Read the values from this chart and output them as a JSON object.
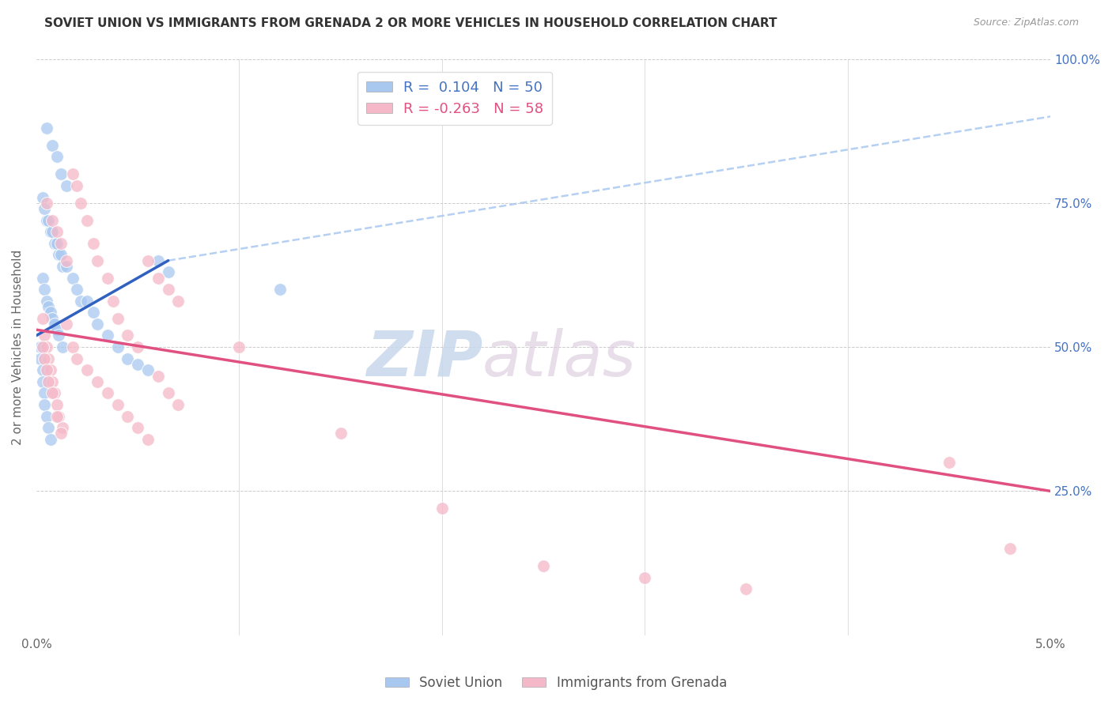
{
  "title": "SOVIET UNION VS IMMIGRANTS FROM GRENADA 2 OR MORE VEHICLES IN HOUSEHOLD CORRELATION CHART",
  "source": "Source: ZipAtlas.com",
  "ylabel": "2 or more Vehicles in Household",
  "xlim": [
    0.0,
    5.0
  ],
  "ylim": [
    0.0,
    100.0
  ],
  "legend_labels": [
    "Soviet Union",
    "Immigrants from Grenada"
  ],
  "R_blue": 0.104,
  "N_blue": 50,
  "R_pink": -0.263,
  "N_pink": 58,
  "blue_color": "#A8C8F0",
  "pink_color": "#F5B8C8",
  "blue_line_color": "#3060C0",
  "pink_line_color": "#E05080",
  "blue_dash_color": "#A8C8F0",
  "background_color": "#FFFFFF",
  "watermark_zip": "ZIP",
  "watermark_atlas": "atlas",
  "blue_scatter_x": [
    0.05,
    0.08,
    0.1,
    0.12,
    0.15,
    0.05,
    0.07,
    0.09,
    0.11,
    0.13,
    0.03,
    0.04,
    0.06,
    0.08,
    0.1,
    0.12,
    0.15,
    0.18,
    0.2,
    0.22,
    0.03,
    0.04,
    0.05,
    0.06,
    0.07,
    0.08,
    0.09,
    0.1,
    0.11,
    0.13,
    0.25,
    0.28,
    0.3,
    0.35,
    0.4,
    0.45,
    0.5,
    0.55,
    0.6,
    0.65,
    0.02,
    0.02,
    0.03,
    0.03,
    0.04,
    0.04,
    0.05,
    0.06,
    0.07,
    1.2
  ],
  "blue_scatter_y": [
    88,
    85,
    83,
    80,
    78,
    72,
    70,
    68,
    66,
    64,
    76,
    74,
    72,
    70,
    68,
    66,
    64,
    62,
    60,
    58,
    62,
    60,
    58,
    57,
    56,
    55,
    54,
    53,
    52,
    50,
    58,
    56,
    54,
    52,
    50,
    48,
    47,
    46,
    65,
    63,
    50,
    48,
    46,
    44,
    42,
    40,
    38,
    36,
    34,
    60
  ],
  "pink_scatter_x": [
    0.05,
    0.08,
    0.1,
    0.12,
    0.15,
    0.18,
    0.2,
    0.22,
    0.25,
    0.28,
    0.3,
    0.35,
    0.38,
    0.4,
    0.45,
    0.5,
    0.55,
    0.6,
    0.65,
    0.7,
    0.03,
    0.04,
    0.05,
    0.06,
    0.07,
    0.08,
    0.09,
    0.1,
    0.11,
    0.13,
    0.15,
    0.18,
    0.2,
    0.25,
    0.3,
    0.35,
    0.4,
    0.45,
    0.5,
    0.55,
    0.6,
    0.65,
    0.7,
    1.0,
    1.5,
    2.0,
    2.5,
    3.0,
    3.5,
    4.5,
    0.03,
    0.04,
    0.05,
    0.06,
    0.08,
    0.1,
    0.12,
    4.8
  ],
  "pink_scatter_y": [
    75,
    72,
    70,
    68,
    65,
    80,
    78,
    75,
    72,
    68,
    65,
    62,
    58,
    55,
    52,
    50,
    65,
    62,
    60,
    58,
    55,
    52,
    50,
    48,
    46,
    44,
    42,
    40,
    38,
    36,
    54,
    50,
    48,
    46,
    44,
    42,
    40,
    38,
    36,
    34,
    45,
    42,
    40,
    50,
    35,
    22,
    12,
    10,
    8,
    30,
    50,
    48,
    46,
    44,
    42,
    38,
    35,
    15
  ],
  "blue_line_x0": 0.0,
  "blue_line_y0": 52.0,
  "blue_line_x1": 0.65,
  "blue_line_y1": 65.0,
  "blue_dash_x0": 0.65,
  "blue_dash_y0": 65.0,
  "blue_dash_x1": 5.0,
  "blue_dash_y1": 90.0,
  "pink_line_x0": 0.0,
  "pink_line_y0": 53.0,
  "pink_line_x1": 5.0,
  "pink_line_y1": 25.0
}
